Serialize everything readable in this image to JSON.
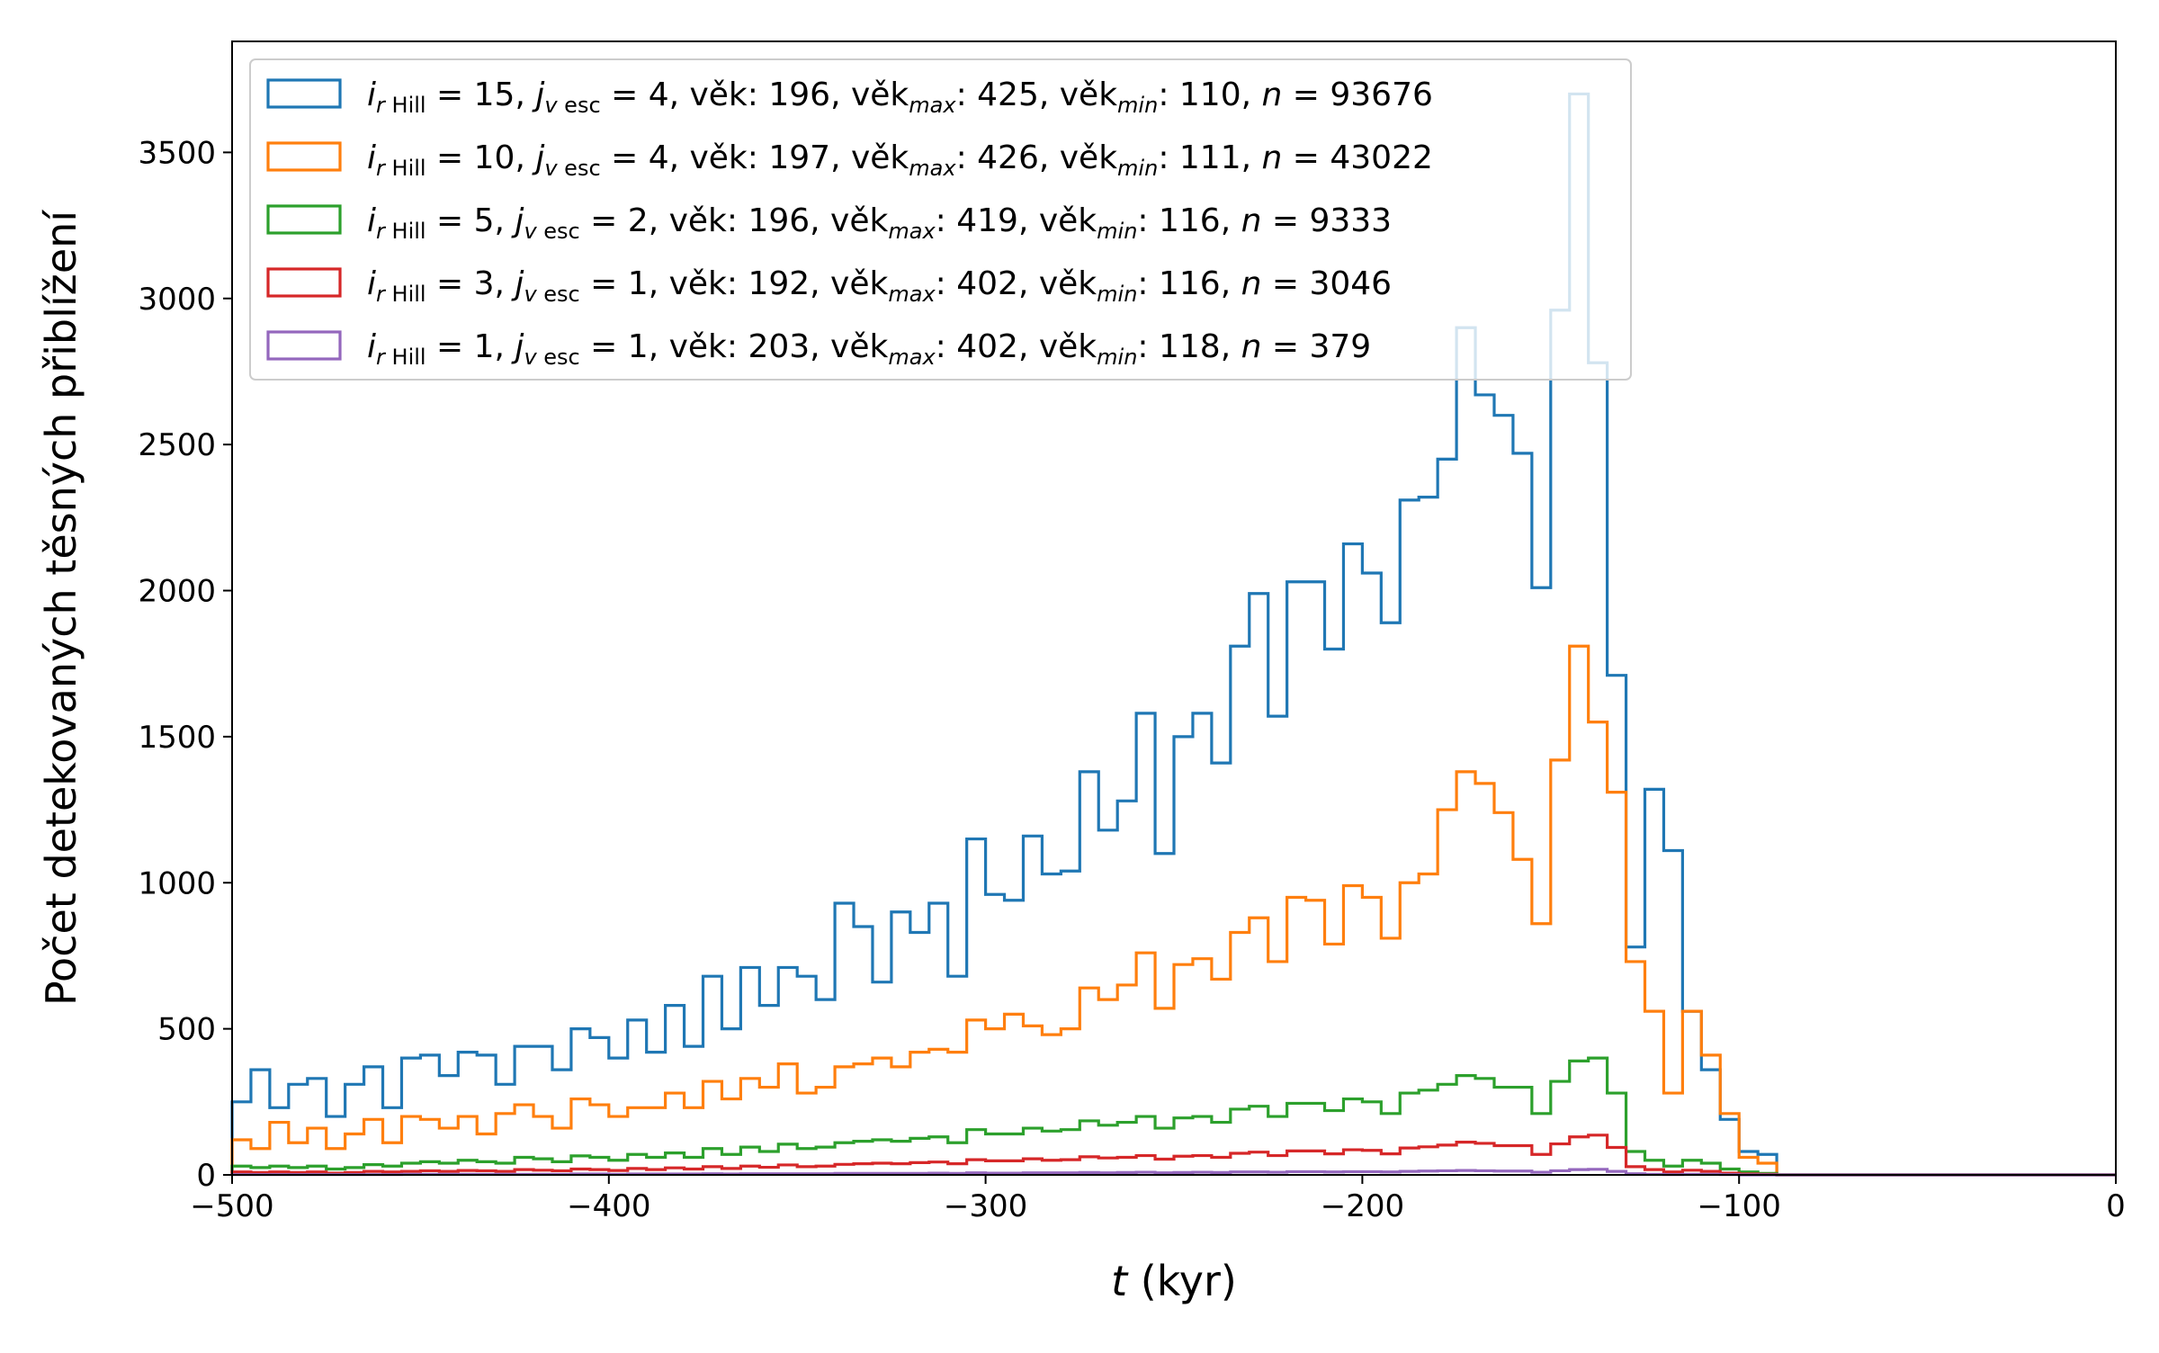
{
  "chart_data": {
    "type": "histogram",
    "xlabel_var": "t",
    "xlabel_unit": " (kyr)",
    "ylabel": "Počet detekovaných těsných přiblížení",
    "xlim": [
      -500,
      0
    ],
    "ylim": [
      0,
      3880
    ],
    "bin_width": 5,
    "bin_start": -500,
    "x_ticks": [
      -500,
      -400,
      -300,
      -200,
      -100,
      0
    ],
    "x_tick_labels": [
      "−500",
      "−400",
      "−300",
      "−200",
      "−100",
      "0"
    ],
    "y_ticks": [
      0,
      500,
      1000,
      1500,
      2000,
      2500,
      3000,
      3500
    ],
    "y_tick_labels": [
      "0",
      "500",
      "1000",
      "1500",
      "2000",
      "2500",
      "3000",
      "3500"
    ],
    "legend_position": "upper-left",
    "series": [
      {
        "color": "#1f77b4",
        "legend": {
          "rhill": "15",
          "jvesc": "4",
          "vek": "196",
          "vekmax": "425",
          "vekmin": "110",
          "n": "93676"
        },
        "values": [
          250,
          360,
          230,
          310,
          330,
          200,
          310,
          370,
          230,
          400,
          410,
          340,
          420,
          410,
          310,
          440,
          440,
          360,
          500,
          470,
          400,
          530,
          420,
          580,
          440,
          680,
          500,
          710,
          580,
          710,
          680,
          600,
          930,
          850,
          660,
          900,
          830,
          930,
          680,
          1150,
          960,
          940,
          1160,
          1030,
          1040,
          1380,
          1180,
          1280,
          1580,
          1100,
          1500,
          1580,
          1410,
          1810,
          1990,
          1570,
          2030,
          2030,
          1800,
          2160,
          2060,
          1890,
          2310,
          2320,
          2450,
          2900,
          2670,
          2600,
          2470,
          2010,
          2960,
          3700,
          2780,
          1710,
          780,
          1320,
          1110,
          560,
          360,
          190,
          80,
          70
        ]
      },
      {
        "color": "#ff7f0e",
        "legend": {
          "rhill": "10",
          "jvesc": "4",
          "vek": "197",
          "vekmax": "426",
          "vekmin": "111",
          "n": "43022"
        },
        "values": [
          120,
          90,
          180,
          110,
          160,
          90,
          140,
          190,
          110,
          200,
          190,
          160,
          200,
          140,
          210,
          240,
          200,
          160,
          260,
          240,
          200,
          230,
          230,
          280,
          230,
          320,
          260,
          330,
          300,
          380,
          280,
          300,
          370,
          380,
          400,
          370,
          420,
          430,
          420,
          530,
          500,
          550,
          510,
          480,
          500,
          640,
          600,
          650,
          760,
          570,
          720,
          740,
          670,
          830,
          880,
          730,
          950,
          940,
          790,
          990,
          950,
          810,
          1000,
          1030,
          1250,
          1380,
          1340,
          1240,
          1080,
          860,
          1420,
          1810,
          1550,
          1310,
          730,
          560,
          280,
          560,
          410,
          210,
          60,
          40
        ]
      },
      {
        "color": "#2ca02c",
        "legend": {
          "rhill": " 5",
          "jvesc": "2",
          "vek": "196",
          "vekmax": "419",
          "vekmin": "116",
          "n": "9333"
        },
        "values": [
          30,
          25,
          30,
          25,
          30,
          20,
          25,
          35,
          30,
          40,
          45,
          40,
          50,
          45,
          40,
          60,
          55,
          45,
          65,
          60,
          50,
          70,
          60,
          75,
          60,
          90,
          70,
          95,
          80,
          105,
          90,
          95,
          110,
          115,
          120,
          115,
          125,
          130,
          110,
          155,
          140,
          140,
          160,
          150,
          155,
          185,
          170,
          180,
          200,
          160,
          195,
          200,
          180,
          225,
          235,
          200,
          245,
          245,
          220,
          260,
          250,
          210,
          280,
          290,
          310,
          340,
          330,
          300,
          300,
          210,
          320,
          390,
          400,
          280,
          80,
          50,
          30,
          50,
          40,
          20,
          10,
          5
        ]
      },
      {
        "color": "#d62728",
        "legend": {
          "rhill": " 3",
          "jvesc": "1",
          "vek": "192",
          "vekmax": "402",
          "vekmin": "116",
          "n": "3046"
        },
        "values": [
          10,
          8,
          10,
          8,
          10,
          6,
          8,
          12,
          10,
          12,
          14,
          12,
          15,
          14,
          12,
          18,
          16,
          14,
          20,
          18,
          15,
          22,
          18,
          24,
          20,
          28,
          22,
          30,
          26,
          34,
          28,
          30,
          36,
          38,
          40,
          38,
          42,
          44,
          38,
          52,
          48,
          48,
          55,
          50,
          52,
          62,
          58,
          60,
          66,
          54,
          64,
          66,
          60,
          74,
          78,
          66,
          82,
          82,
          72,
          86,
          84,
          72,
          92,
          96,
          102,
          112,
          108,
          100,
          100,
          70,
          106,
          130,
          136,
          94,
          28,
          18,
          10,
          16,
          12,
          6,
          3,
          2
        ]
      },
      {
        "color": "#9467bd",
        "legend": {
          "rhill": " 1",
          "jvesc": "1",
          "vek": "203",
          "vekmax": "402",
          "vekmin": "118",
          "n": "379"
        },
        "values": [
          1,
          1,
          1,
          1,
          1,
          1,
          1,
          1,
          1,
          2,
          2,
          2,
          2,
          2,
          2,
          2,
          2,
          2,
          3,
          3,
          2,
          3,
          3,
          3,
          3,
          4,
          3,
          4,
          4,
          4,
          4,
          4,
          5,
          5,
          5,
          5,
          5,
          6,
          5,
          7,
          6,
          6,
          7,
          7,
          7,
          8,
          7,
          8,
          9,
          7,
          8,
          9,
          8,
          10,
          10,
          9,
          11,
          11,
          10,
          11,
          11,
          10,
          12,
          13,
          14,
          15,
          14,
          13,
          13,
          9,
          14,
          18,
          19,
          12,
          4,
          2,
          1,
          2,
          2,
          1,
          0,
          0
        ]
      }
    ]
  }
}
